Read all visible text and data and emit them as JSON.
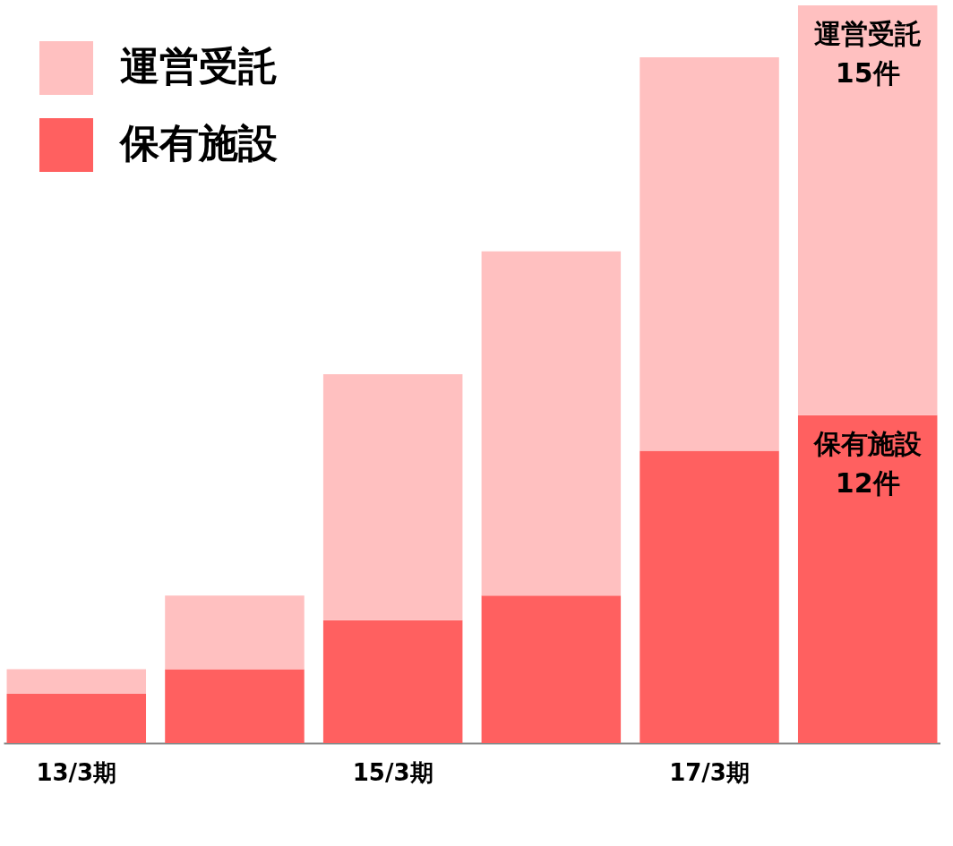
{
  "chart_data": {
    "type": "bar",
    "stacked": true,
    "categories": [
      "13/3期",
      null,
      "15/3期",
      null,
      "17/3期",
      null
    ],
    "series": [
      {
        "name": "保有施設",
        "color": "#ff6060",
        "values": [
          1.8,
          2.7,
          4.5,
          5.4,
          10.7,
          12
        ],
        "value_labels": [
          null,
          null,
          null,
          null,
          null,
          "12件"
        ]
      },
      {
        "name": "運営受託",
        "color": "#ffc0c0",
        "values": [
          0.9,
          2.7,
          9,
          12.6,
          14.4,
          15
        ],
        "value_labels": [
          null,
          null,
          null,
          null,
          null,
          "15件"
        ]
      }
    ],
    "legend": "top left"
  }
}
